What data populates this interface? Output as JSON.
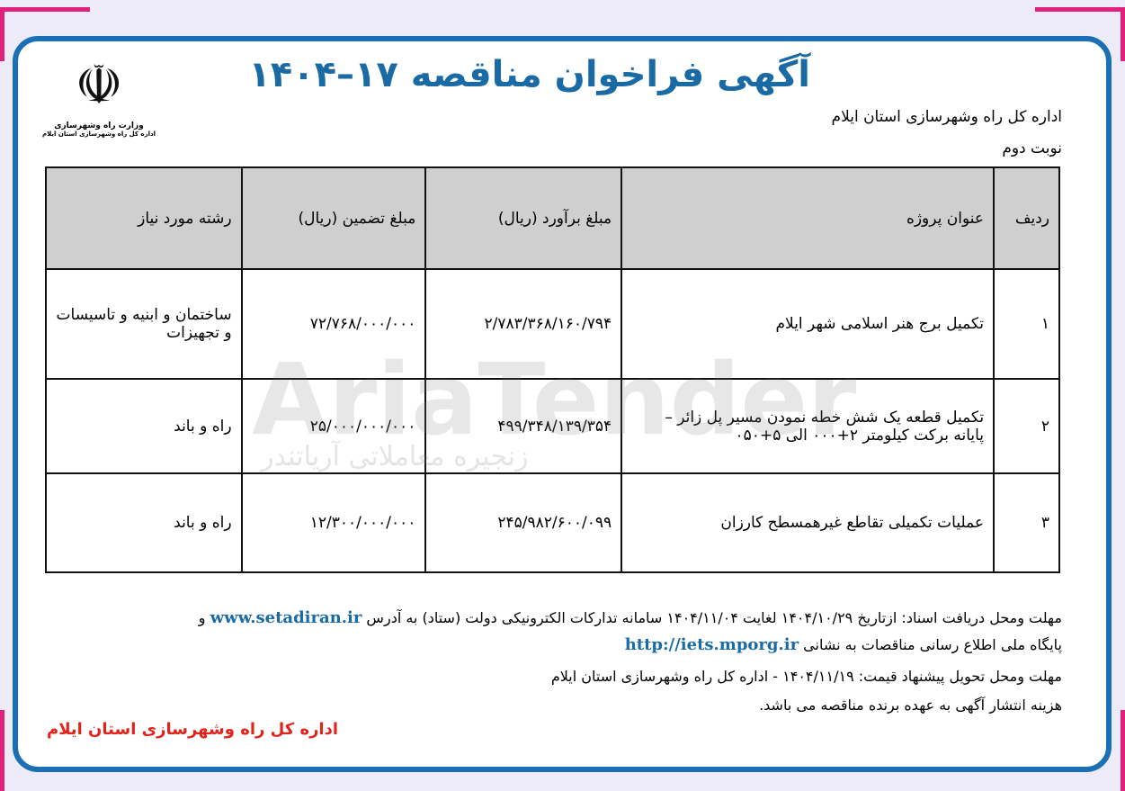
{
  "title": "آگهی فراخوان مناقصه ۱۷–۱۴۰۴",
  "organization": "اداره کل راه وشهرسازی استان ایلام",
  "round": "نوبت دوم",
  "logo": {
    "line1": "وزارت راه وشهرسازی",
    "line2": "اداره کل راه وشهرسازی استان ایلام"
  },
  "watermark": {
    "brand": "AriaTender",
    "sub": "زنجیره معاملاتی آریاتندر"
  },
  "table": {
    "headers": [
      "ردیف",
      "عنوان پروژه",
      "مبلغ برآورد (ریال)",
      "مبلغ تضمین (ریال)",
      "رشته مورد نیاز"
    ],
    "rows": [
      [
        "۱",
        "تکمیل برج هنر اسلامی شهر ایلام",
        "۲/۷۸۳/۳۶۸/۱۶۰/۷۹۴",
        "۷۲/۷۶۸/۰۰۰/۰۰۰",
        "ساختمان و ابنیه و تاسیسات و تجهیزات"
      ],
      [
        "۲",
        "تکمیل قطعه یک شش خطه نمودن مسیر پل زائر – پایانه برکت کیلومتر ۲+۰۰۰ الی ۵+۰۵۰",
        "۴۹۹/۳۴۸/۱۳۹/۳۵۴",
        "۲۵/۰۰۰/۰۰۰/۰۰۰",
        "راه و باند"
      ],
      [
        "۳",
        "عملیات تکمیلی تقاطع غیرهمسطح کارزان",
        "۲۴۵/۹۸۲/۶۰۰/۰۹۹",
        "۱۲/۳۰۰/۰۰۰/۰۰۰",
        "راه و باند"
      ]
    ]
  },
  "footer": {
    "line1_text": "مهلت ومحل دریافت اسناد: ازتاریخ ۱۴۰۴/۱۰/۲۹ لغایت ۱۴۰۴/۱۱/۰۴ سامانه تدارکات الکترونیکی دولت (ستاد) به آدرس ",
    "line1_link": "www.setadiran.ir",
    "line1_end": " و",
    "line2_text": "پایگاه ملی اطلاع رسانی مناقصات به نشانی ",
    "line2_link": "http://iets.mporg.ir",
    "line3": "مهلت ومحل تحویل پیشنهاد قیمت: ۱۴۰۴/۱۱/۱۹ - اداره کل راه وشهرسازی استان ایلام",
    "line4": "هزینه انتشار آگهی به عهده برنده مناقصه می باشد.",
    "signature": "اداره کل راه وشهرسازی استان ایلام"
  },
  "colors": {
    "frame": "#1b6fb5",
    "title": "#1a6aa5",
    "signature": "#e2231a",
    "corner": "#e0207a"
  }
}
